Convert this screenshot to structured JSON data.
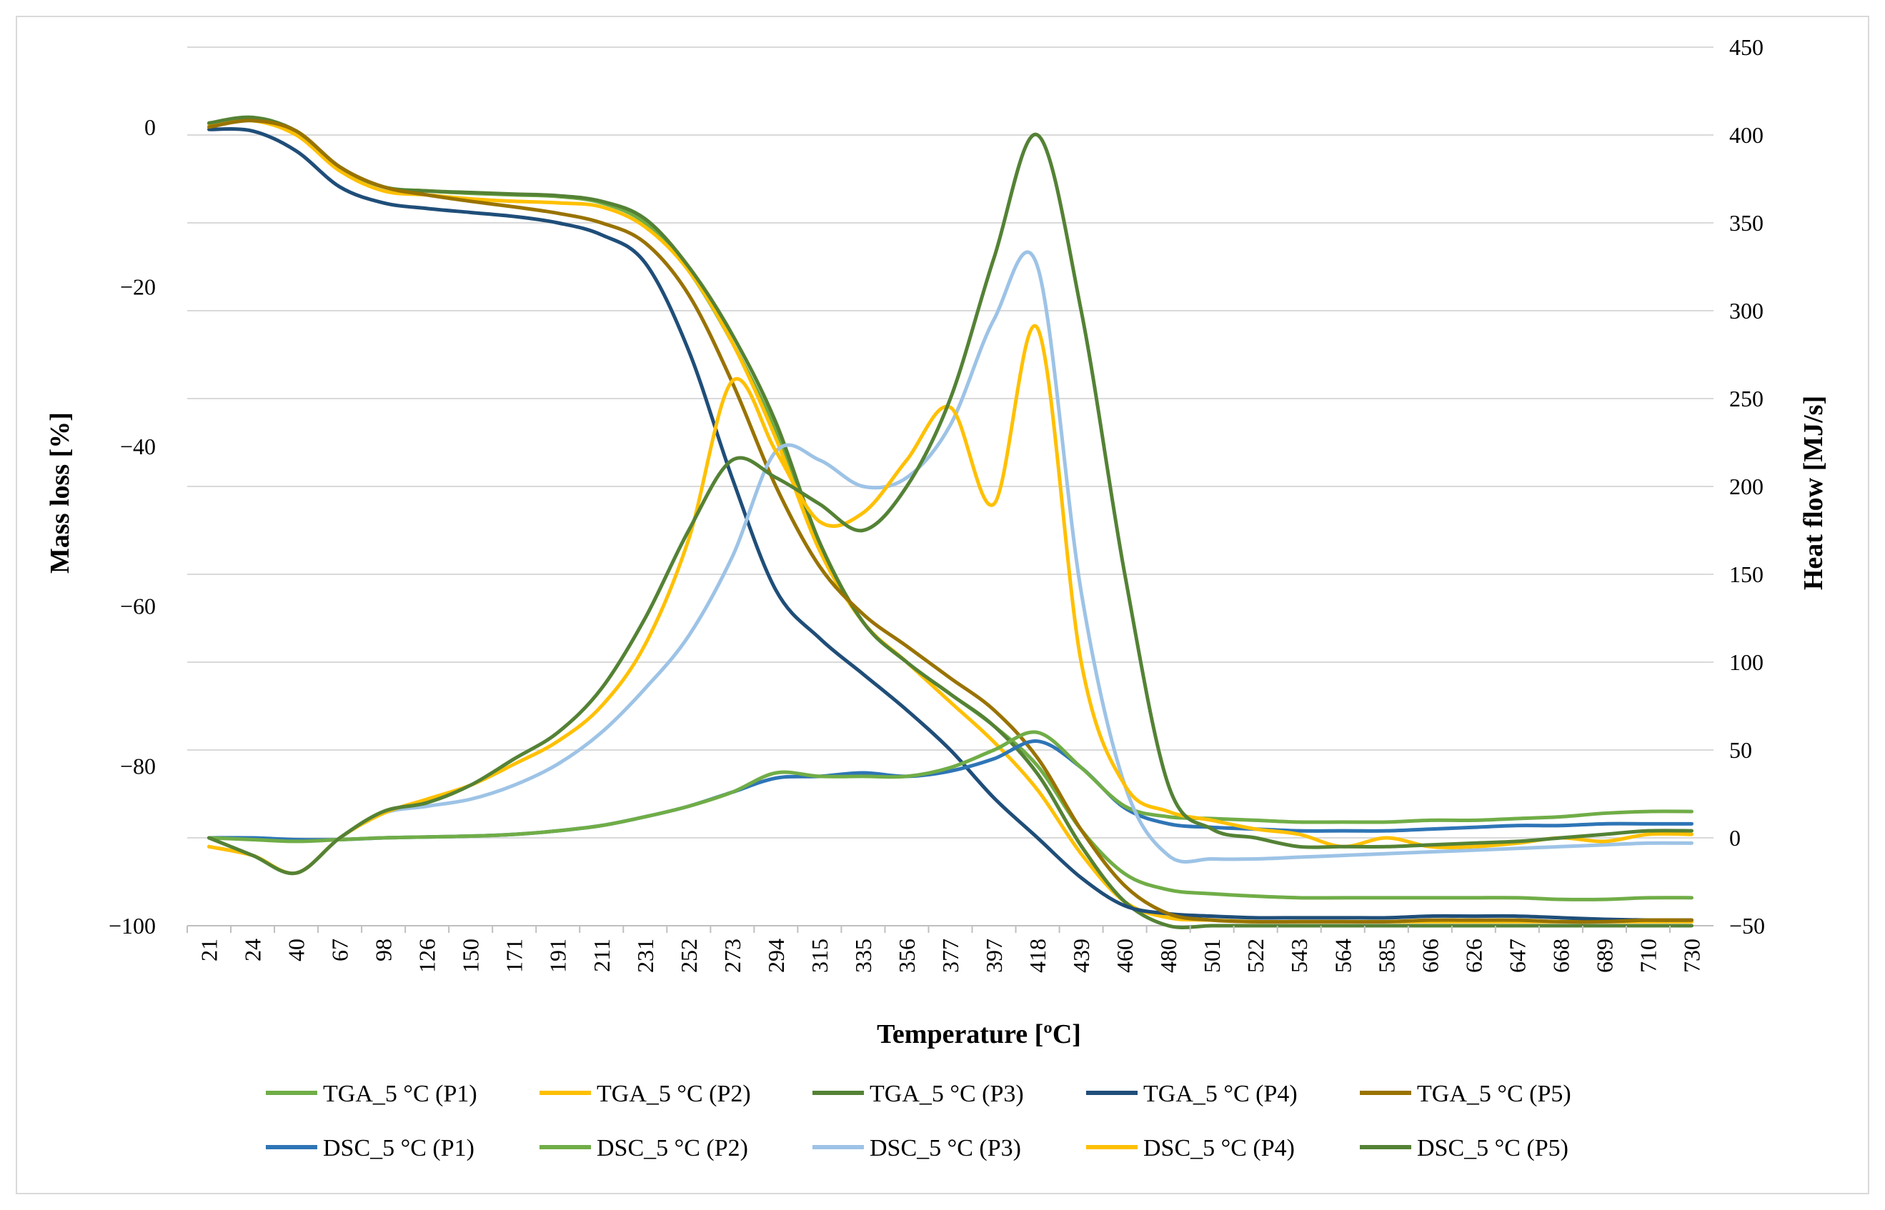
{
  "chart_data": {
    "type": "line",
    "xlabel": "Temperature [ºC]",
    "ylabel": "Mass loss [%]",
    "y2label": "Heat flow [MJ/s]",
    "ylim": [
      -100,
      10
    ],
    "y2lim": [
      -50,
      450
    ],
    "yticks": [
      0,
      -20,
      -40,
      -60,
      -80,
      -100
    ],
    "ytick_labels": [
      "0",
      "−20",
      "−40",
      "−60",
      "−80",
      "−100"
    ],
    "y2ticks": [
      450,
      400,
      350,
      300,
      250,
      200,
      150,
      100,
      50,
      0,
      -50
    ],
    "y2tick_labels": [
      "450",
      "400",
      "350",
      "300",
      "250",
      "200",
      "150",
      "100",
      "50",
      "0",
      "−50"
    ],
    "xtick_labels": [
      "21",
      "24",
      "40",
      "67",
      "98",
      "126",
      "150",
      "171",
      "191",
      "211",
      "231",
      "252",
      "273",
      "294",
      "315",
      "335",
      "356",
      "377",
      "397",
      "418",
      "439",
      "460",
      "480",
      "501",
      "522",
      "543",
      "564",
      "585",
      "606",
      "626",
      "647",
      "668",
      "689",
      "710",
      "730"
    ],
    "grid": true,
    "legend": "bottom",
    "x": [
      21,
      24,
      40,
      67,
      98,
      126,
      150,
      171,
      191,
      211,
      231,
      252,
      273,
      294,
      315,
      335,
      356,
      377,
      397,
      418,
      439,
      460,
      480,
      501,
      522,
      543,
      564,
      585,
      606,
      626,
      647,
      668,
      689,
      710,
      730
    ],
    "series": [
      {
        "name": "TGA_5 °C  (P1)",
        "axis": "left",
        "color": "#70ad47",
        "values": [
          0.5,
          1,
          -0.5,
          -5,
          -7.5,
          -8,
          -8.3,
          -8.5,
          -8.7,
          -9.5,
          -12,
          -18,
          -27,
          -38,
          -52,
          -62,
          -67,
          -71,
          -75,
          -80,
          -88,
          -93.5,
          -95.5,
          -96,
          -96.3,
          -96.5,
          -96.5,
          -96.5,
          -96.5,
          -96.5,
          -96.5,
          -96.7,
          -96.7,
          -96.5,
          -96.5
        ]
      },
      {
        "name": "TGA_5 °C  (P2)",
        "axis": "left",
        "color": "#ffc000",
        "values": [
          0.3,
          0.8,
          -1,
          -5.5,
          -8,
          -8.5,
          -9,
          -9.3,
          -9.5,
          -10,
          -12.5,
          -18,
          -27,
          -39,
          -53,
          -62,
          -67,
          -72,
          -77,
          -83,
          -91,
          -97,
          -99,
          -99.3,
          -99.5,
          -99.5,
          -99.5,
          -99.5,
          -99.5,
          -99.5,
          -99.5,
          -99.5,
          -99.5,
          -99.5,
          -99.5
        ]
      },
      {
        "name": "TGA_5 °C  (P3)",
        "axis": "left",
        "color": "#548235",
        "values": [
          0.5,
          1.2,
          -0.5,
          -5,
          -7.5,
          -8,
          -8.2,
          -8.4,
          -8.6,
          -9.3,
          -11.5,
          -17.5,
          -26,
          -37,
          -52,
          -62,
          -67,
          -71,
          -75,
          -81,
          -90,
          -97,
          -100,
          -100,
          -100,
          -100,
          -100,
          -100,
          -100,
          -100,
          -100,
          -100,
          -100,
          -100,
          -100
        ]
      },
      {
        "name": "TGA_5 °C  (P4)",
        "axis": "left",
        "color": "#1f4e79",
        "values": [
          -0.3,
          -0.5,
          -3,
          -7.5,
          -9.5,
          -10.2,
          -10.7,
          -11.2,
          -12,
          -13.5,
          -17,
          -28,
          -44,
          -58,
          -64,
          -68.5,
          -73,
          -78,
          -84,
          -89,
          -94,
          -97.5,
          -98.5,
          -98.8,
          -99,
          -99,
          -99,
          -99,
          -98.8,
          -98.8,
          -98.8,
          -99,
          -99.2,
          -99.3,
          -99.3
        ]
      },
      {
        "name": "TGA_5 °C  (P5)",
        "axis": "left",
        "color": "#997300",
        "values": [
          0,
          0.8,
          -0.5,
          -5,
          -7.5,
          -8.5,
          -9.3,
          -10,
          -10.8,
          -12,
          -14.5,
          -21,
          -32,
          -45,
          -55,
          -61,
          -65,
          -69,
          -73,
          -79,
          -88,
          -95,
          -98.5,
          -99.3,
          -99.5,
          -99.5,
          -99.5,
          -99.5,
          -99.3,
          -99.3,
          -99.3,
          -99.5,
          -99.5,
          -99.3,
          -99.3
        ]
      },
      {
        "name": "DSC_5 °C  (P1)",
        "axis": "right",
        "color": "#2e75b6",
        "values": [
          0,
          0,
          -1,
          -1,
          0,
          0.5,
          1,
          2,
          4,
          7,
          12,
          18,
          26,
          34,
          35,
          37,
          35,
          38,
          45,
          55,
          40,
          17,
          8,
          6,
          5,
          4,
          4,
          4,
          5,
          6,
          7,
          7,
          8,
          8,
          8
        ]
      },
      {
        "name": "DSC_5 °C  (P2)",
        "axis": "right",
        "color": "#70ad47",
        "values": [
          0,
          -1,
          -2,
          -1,
          0,
          0.5,
          1,
          2,
          4,
          7,
          12,
          18,
          26,
          37,
          35,
          35,
          35,
          40,
          50,
          60,
          40,
          18,
          12,
          11,
          10,
          9,
          9,
          9,
          10,
          10,
          11,
          12,
          14,
          15,
          15
        ]
      },
      {
        "name": "DSC_5 °C  (P3)",
        "axis": "right",
        "color": "#9dc3e6",
        "values": [
          -5,
          -10,
          -20,
          0,
          14,
          18,
          22,
          30,
          42,
          60,
          85,
          115,
          160,
          220,
          215,
          200,
          205,
          235,
          295,
          325,
          140,
          30,
          -10,
          -12,
          -12,
          -11,
          -10,
          -9,
          -8,
          -7,
          -6,
          -5,
          -4,
          -3,
          -3
        ]
      },
      {
        "name": "DSC_5 °C  (P4)",
        "axis": "right",
        "color": "#ffc000",
        "values": [
          -5,
          -10,
          -20,
          0,
          14,
          22,
          30,
          42,
          55,
          75,
          110,
          170,
          260,
          220,
          180,
          185,
          215,
          245,
          190,
          290,
          100,
          30,
          15,
          10,
          5,
          2,
          -5,
          0,
          -5,
          -5,
          -3,
          0,
          -2,
          2,
          2
        ]
      },
      {
        "name": "DSC_5 °C  (P5)",
        "axis": "right",
        "color": "#548235",
        "values": [
          0,
          -10,
          -20,
          0,
          15,
          20,
          30,
          45,
          60,
          85,
          125,
          175,
          215,
          205,
          190,
          175,
          200,
          250,
          330,
          400,
          300,
          150,
          30,
          5,
          0,
          -5,
          -5,
          -5,
          -4,
          -3,
          -2,
          0,
          2,
          4,
          4
        ]
      }
    ]
  }
}
